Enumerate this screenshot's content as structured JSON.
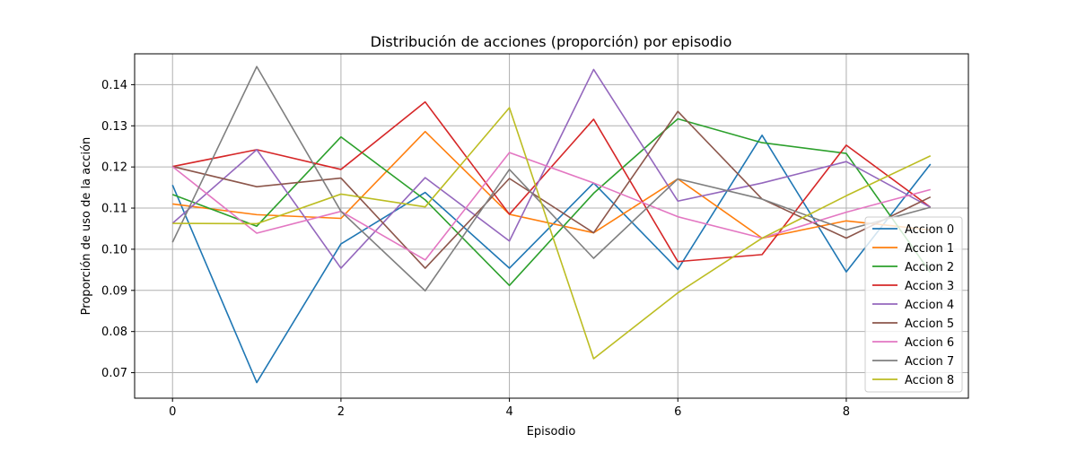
{
  "chart_data": {
    "type": "line",
    "title": "Distribución de acciones (proporción) por episodio",
    "xlabel": "Episodio",
    "ylabel": "Proporción de uso de la acción",
    "xlim": [
      -0.45,
      9.45
    ],
    "ylim": [
      0.0638,
      0.1475
    ],
    "x_ticks": [
      0,
      2,
      4,
      6,
      8
    ],
    "y_ticks": [
      0.07,
      0.08,
      0.09,
      0.1,
      0.11,
      0.12,
      0.13,
      0.14
    ],
    "grid": true,
    "legend_position": "lower-right",
    "x": [
      0,
      1,
      2,
      3,
      4,
      5,
      6,
      7,
      8,
      9
    ],
    "series": [
      {
        "name": "Accion 0",
        "color": "#1f77b4",
        "values": [
          0.1156,
          0.0676,
          0.1013,
          0.1138,
          0.0954,
          0.1161,
          0.0951,
          0.1277,
          0.0945,
          0.1207
        ]
      },
      {
        "name": "Accion 1",
        "color": "#ff7f0e",
        "values": [
          0.111,
          0.1084,
          0.1075,
          0.1286,
          0.1085,
          0.104,
          0.1171,
          0.1027,
          0.1069,
          0.1047
        ]
      },
      {
        "name": "Accion 2",
        "color": "#2ca02c",
        "values": [
          0.1133,
          0.1056,
          0.1273,
          0.112,
          0.0912,
          0.1136,
          0.1317,
          0.1259,
          0.1233,
          0.0943
        ]
      },
      {
        "name": "Accion 3",
        "color": "#d62728",
        "values": [
          0.1201,
          0.1242,
          0.1194,
          0.1358,
          0.1085,
          0.1316,
          0.097,
          0.0987,
          0.1253,
          0.1102
        ]
      },
      {
        "name": "Accion 4",
        "color": "#9467bd",
        "values": [
          0.1063,
          0.1242,
          0.0954,
          0.1174,
          0.102,
          0.1437,
          0.1117,
          0.1161,
          0.1213,
          0.1102
        ]
      },
      {
        "name": "Accion 5",
        "color": "#8c564b",
        "values": [
          0.1201,
          0.1152,
          0.1173,
          0.0954,
          0.1172,
          0.104,
          0.1335,
          0.1122,
          0.1027,
          0.1127
        ]
      },
      {
        "name": "Accion 6",
        "color": "#e377c2",
        "values": [
          0.1201,
          0.1039,
          0.1092,
          0.0974,
          0.1235,
          0.1161,
          0.1079,
          0.1027,
          0.109,
          0.1145
        ]
      },
      {
        "name": "Accion 7",
        "color": "#7f7f7f",
        "values": [
          0.1017,
          0.1444,
          0.1092,
          0.0899,
          0.1194,
          0.0978,
          0.1171,
          0.1122,
          0.1047,
          0.1102
        ]
      },
      {
        "name": "Accion 8",
        "color": "#bcbd22",
        "values": [
          0.1063,
          0.1062,
          0.1134,
          0.1103,
          0.1344,
          0.0734,
          0.0894,
          0.1027,
          0.113,
          0.1227
        ]
      }
    ]
  }
}
